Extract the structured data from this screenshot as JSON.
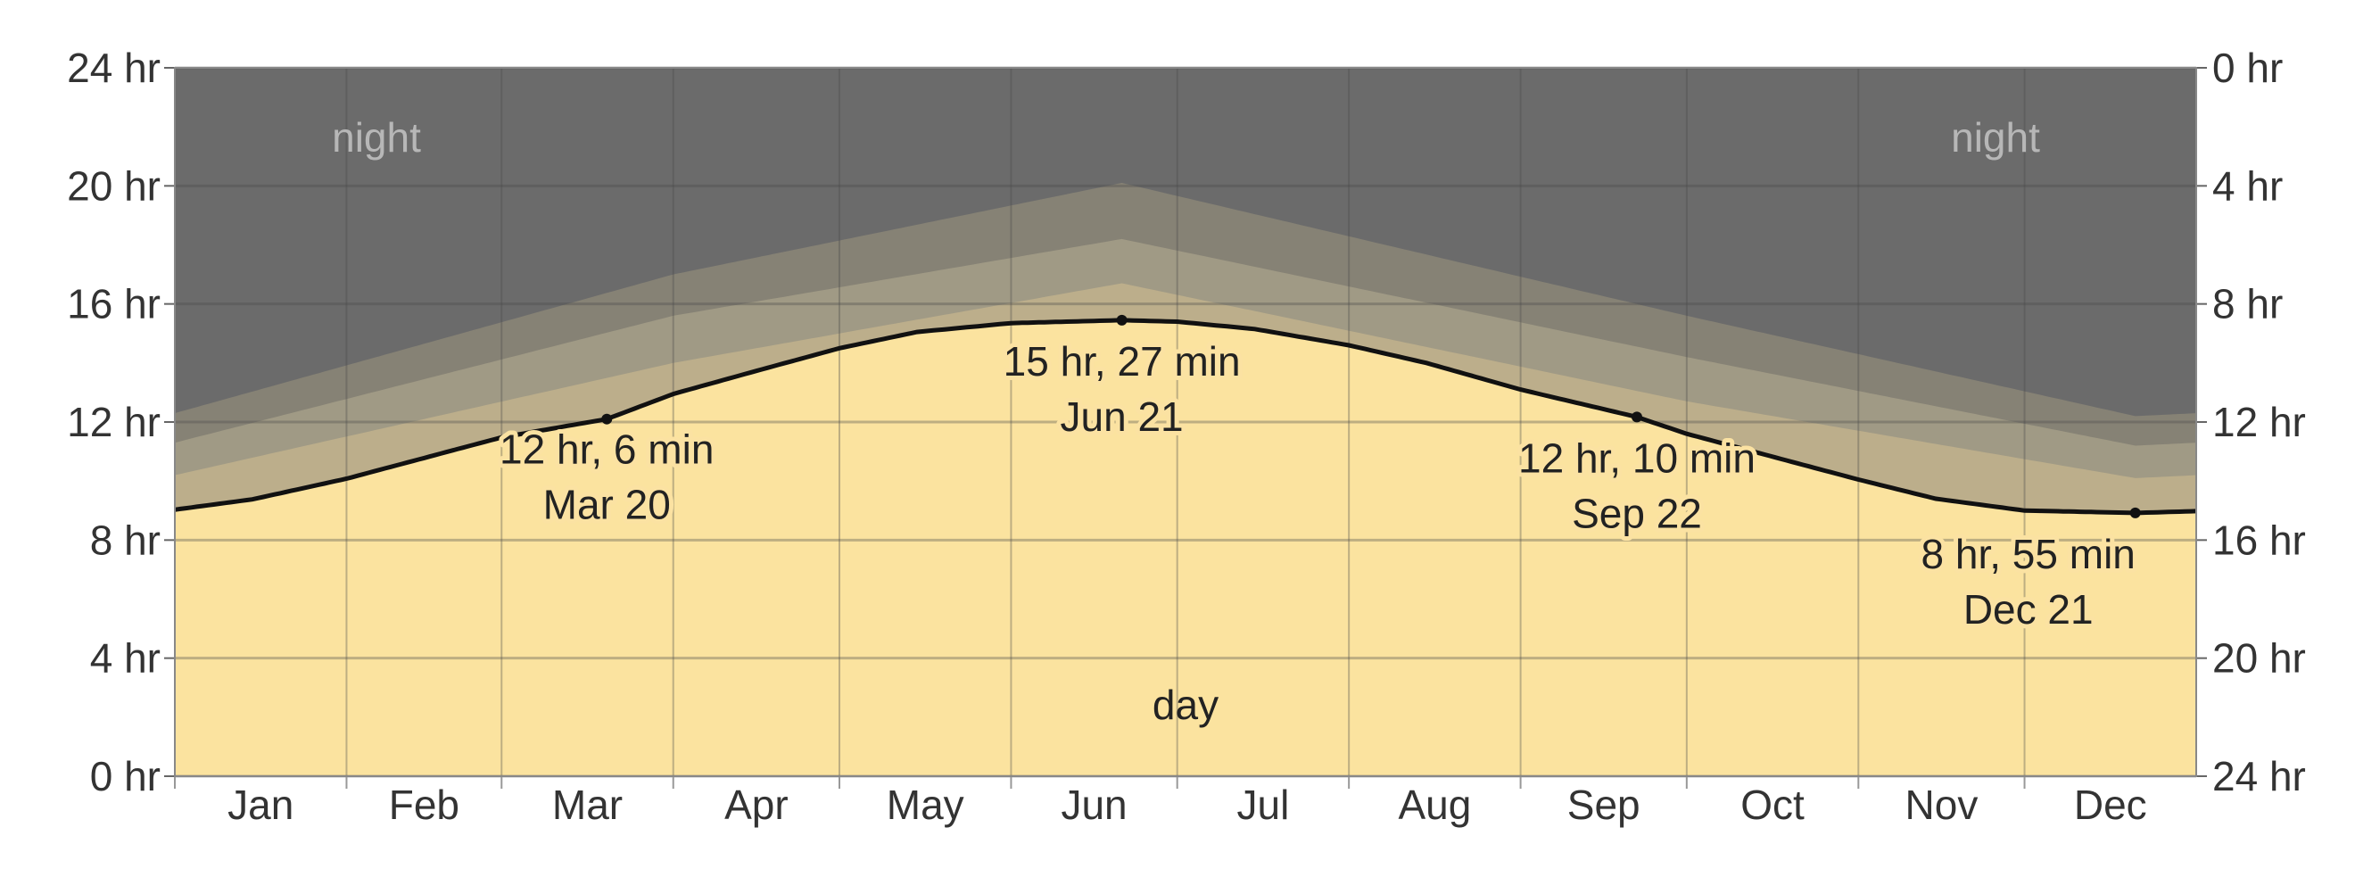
{
  "chart_data": {
    "type": "area",
    "x_unit": "day of year",
    "xlim": [
      1,
      366
    ],
    "ylim": [
      0,
      24
    ],
    "yticks_left": [
      "0 hr",
      "4 hr",
      "8 hr",
      "12 hr",
      "16 hr",
      "20 hr",
      "24 hr"
    ],
    "yticks_right": [
      "24 hr",
      "20 hr",
      "16 hr",
      "12 hr",
      "8 hr",
      "4 hr",
      "0 hr"
    ],
    "months": [
      "Jan",
      "Feb",
      "Mar",
      "Apr",
      "May",
      "Jun",
      "Jul",
      "Aug",
      "Sep",
      "Oct",
      "Nov",
      "Dec"
    ],
    "region_labels": {
      "night": "night",
      "day": "day"
    },
    "series": [
      {
        "role": "daylight",
        "x": [
          1,
          15,
          32,
          46,
          60,
          79,
          91,
          105,
          121,
          135,
          152,
          172,
          182,
          196,
          213,
          227,
          244,
          265,
          274,
          288,
          305,
          319,
          335,
          355,
          366
        ],
        "values": [
          9.03,
          9.38,
          10.08,
          10.78,
          11.48,
          12.1,
          12.95,
          13.68,
          14.5,
          15.05,
          15.35,
          15.45,
          15.4,
          15.15,
          14.6,
          14.0,
          13.1,
          12.17,
          11.6,
          10.9,
          10.05,
          9.4,
          9.0,
          8.92,
          8.98
        ]
      },
      {
        "role": "civil twilight",
        "x": [
          1,
          91,
          172,
          274,
          355,
          366
        ],
        "values": [
          10.2,
          14.0,
          16.7,
          12.7,
          10.1,
          10.2
        ]
      },
      {
        "role": "nautical twilight",
        "x": [
          1,
          91,
          172,
          274,
          355,
          366
        ],
        "values": [
          11.3,
          15.6,
          18.2,
          14.2,
          11.2,
          11.3
        ]
      },
      {
        "role": "astronomical twilight",
        "x": [
          1,
          91,
          172,
          274,
          355,
          366
        ],
        "values": [
          12.3,
          17.0,
          20.1,
          15.6,
          12.2,
          12.3
        ]
      }
    ],
    "annotations": [
      {
        "x": 79,
        "y": 12.1,
        "text1": "12 hr, 6 min",
        "text2": "Mar 20"
      },
      {
        "x": 172,
        "y": 15.45,
        "text1": "15 hr, 27 min",
        "text2": "Jun 21"
      },
      {
        "x": 265,
        "y": 12.17,
        "text1": "12 hr, 10 min",
        "text2": "Sep 22"
      },
      {
        "x": 355,
        "y": 8.92,
        "text1": "8 hr, 55 min",
        "text2": "Dec 21"
      }
    ],
    "colors": {
      "night": "#6b6b6b",
      "astronomical": "#868275",
      "nautical": "#a09a85",
      "civil": "#bcae8b",
      "day": "#fbe39f",
      "daylight_line": "#111111",
      "grid": "#4a4a4a"
    }
  }
}
